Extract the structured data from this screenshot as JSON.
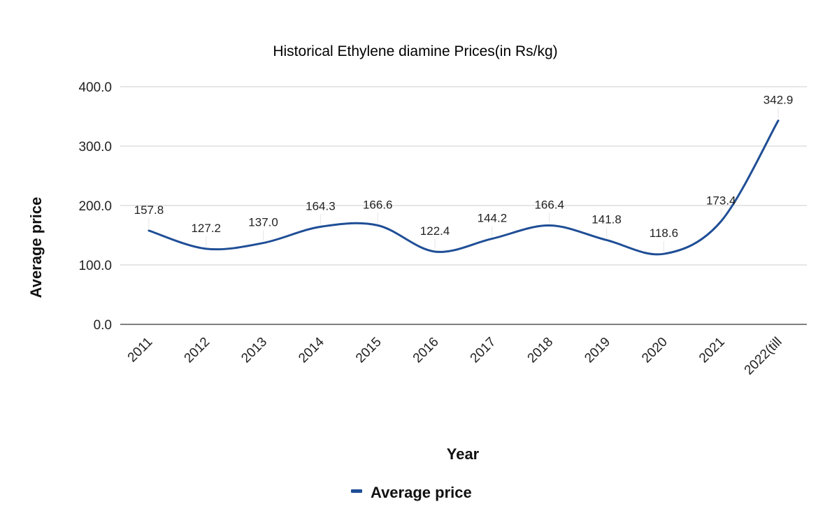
{
  "chart_data": {
    "type": "line",
    "title": "Historical Ethylene diamine Prices(in Rs/kg)",
    "xlabel": "Year",
    "ylabel": "Average price",
    "categories": [
      "2011",
      "2012",
      "2013",
      "2014",
      "2015",
      "2016",
      "2017",
      "2018",
      "2019",
      "2020",
      "2021",
      "2022(till"
    ],
    "series": [
      {
        "name": "Average price",
        "color": "#1f4e96",
        "values": [
          157.8,
          127.2,
          137.0,
          164.3,
          166.6,
          122.4,
          144.2,
          166.4,
          141.8,
          118.6,
          173.4,
          342.9
        ],
        "data_labels": [
          "157.8",
          "127.2",
          "137.0",
          "164.3",
          "166.6",
          "122.4",
          "144.2",
          "166.4",
          "141.8",
          "118.6",
          "173.4",
          "342.9"
        ]
      }
    ],
    "ylim": [
      0,
      400
    ],
    "yticks": [
      0,
      100,
      200,
      300,
      400
    ],
    "ytick_labels": [
      "0.0",
      "100.0",
      "200.0",
      "300.0",
      "400.0"
    ],
    "grid": true,
    "smooth": true,
    "legend_position": "bottom-center"
  }
}
